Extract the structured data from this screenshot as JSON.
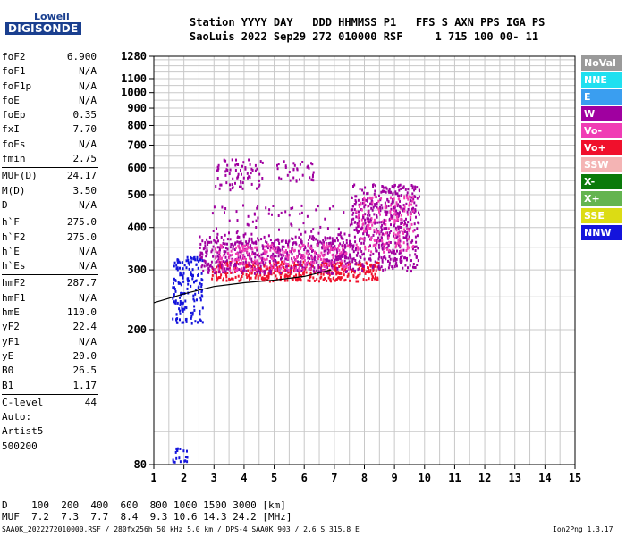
{
  "logo": {
    "line1": "Lowell",
    "line2": "DIGISONDE"
  },
  "header": {
    "line1": "Station YYYY DAY   DDD HHMMSS P1   FFS S AXN PPS IGA PS",
    "line2": "SaoLuis 2022 Sep29 272 010000 RSF     1 715 100 00- 11"
  },
  "parameters": [
    {
      "group": [
        {
          "name": "foF2",
          "value": "6.900"
        },
        {
          "name": "foF1",
          "value": "N/A"
        },
        {
          "name": "foF1p",
          "value": "N/A"
        },
        {
          "name": "foE",
          "value": "N/A"
        },
        {
          "name": "foEp",
          "value": "0.35"
        },
        {
          "name": "fxI",
          "value": "7.70"
        },
        {
          "name": "foEs",
          "value": "N/A"
        },
        {
          "name": "fmin",
          "value": "2.75"
        }
      ]
    },
    {
      "group": [
        {
          "name": "MUF(D)",
          "value": "24.17"
        },
        {
          "name": "M(D)",
          "value": "3.50"
        },
        {
          "name": "D",
          "value": "N/A"
        }
      ]
    },
    {
      "group": [
        {
          "name": "h`F",
          "value": "275.0"
        },
        {
          "name": "h`F2",
          "value": "275.0"
        },
        {
          "name": "h`E",
          "value": "N/A"
        },
        {
          "name": "h`Es",
          "value": "N/A"
        }
      ]
    },
    {
      "group": [
        {
          "name": "hmF2",
          "value": "287.7"
        },
        {
          "name": "hmF1",
          "value": "N/A"
        },
        {
          "name": "hmE",
          "value": "110.0"
        },
        {
          "name": "yF2",
          "value": "22.4"
        },
        {
          "name": "yF1",
          "value": "N/A"
        },
        {
          "name": "yE",
          "value": "20.0"
        },
        {
          "name": "B0",
          "value": "26.5"
        },
        {
          "name": "B1",
          "value": "1.17"
        }
      ]
    },
    {
      "group": [
        {
          "name": "C-level",
          "value": "44"
        }
      ]
    },
    {
      "group": [
        {
          "name": "Auto:",
          "value": ""
        },
        {
          "name": "Artist5",
          "value": ""
        },
        {
          "name": "500200",
          "value": ""
        }
      ]
    }
  ],
  "legend": [
    {
      "label": "NoVal",
      "color": "#9a9a9a"
    },
    {
      "label": "NNE",
      "color": "#1fe0f0"
    },
    {
      "label": "E",
      "color": "#3a9ef0"
    },
    {
      "label": "W",
      "color": "#a000a0"
    },
    {
      "label": "Vo-",
      "color": "#f03cb4"
    },
    {
      "label": "Vo+",
      "color": "#f0102c"
    },
    {
      "label": "SSW",
      "color": "#f4b4b4"
    },
    {
      "label": "X-",
      "color": "#0a7a0a"
    },
    {
      "label": "X+",
      "color": "#64b450"
    },
    {
      "label": "SSE",
      "color": "#dcdc14"
    },
    {
      "label": "NNW",
      "color": "#1414dc"
    }
  ],
  "footer": {
    "line1": "D    100  200  400  600  800 1000 1500 3000 [km]",
    "line2": "MUF  7.2  7.3  7.7  8.4  9.3 10.6 14.3 24.2 [MHz]",
    "line3": "SAA0K_2022272010000.RSF / 280fx256h 50 kHz 5.0 km / DPS-4 SAA0K 903 / 2.6 S 315.8 E",
    "line4": "Ion2Png 1.3.17"
  },
  "chart_data": {
    "type": "scatter",
    "title": "",
    "xlabel": "",
    "ylabel": "",
    "xlim": [
      1,
      15
    ],
    "ylim": [
      80,
      1280
    ],
    "x_ticks": [
      1,
      2,
      3,
      4,
      5,
      6,
      7,
      8,
      9,
      10,
      11,
      12,
      13,
      14,
      15
    ],
    "y_ticks": [
      80,
      200,
      300,
      400,
      500,
      600,
      700,
      800,
      900,
      1000,
      1100,
      1280
    ],
    "y_scale": "log",
    "grid": true,
    "echo_regions": [
      {
        "name": "",
        "color": "#f0102c",
        "freq": [
          2.9,
          8.5
        ],
        "height": [
          280,
          320
        ],
        "density": 0.9
      },
      {
        "name": "",
        "color": "#a000a0",
        "freq": [
          2.5,
          7.5
        ],
        "height": [
          295,
          380
        ],
        "density": 0.7
      },
      {
        "name": "",
        "color": "#f03cb4",
        "freq": [
          3.0,
          7.5
        ],
        "height": [
          300,
          360
        ],
        "density": 0.5
      },
      {
        "name": "",
        "color": "#a000a0",
        "freq": [
          7.5,
          9.8
        ],
        "height": [
          300,
          540
        ],
        "density": 0.55
      },
      {
        "name": "",
        "color": "#f03cb4",
        "freq": [
          7.7,
          9.6
        ],
        "height": [
          340,
          500
        ],
        "density": 0.4
      },
      {
        "name": "",
        "color": "#1414dc",
        "freq": [
          1.6,
          2.6
        ],
        "height": [
          210,
          330
        ],
        "density": 0.6
      },
      {
        "name": "",
        "color": "#a000a0",
        "freq": [
          3.0,
          4.6
        ],
        "height": [
          520,
          640
        ],
        "density": 0.35
      },
      {
        "name": "",
        "color": "#a000a0",
        "freq": [
          5.0,
          6.3
        ],
        "height": [
          550,
          640
        ],
        "density": 0.3
      },
      {
        "name": "",
        "color": "#a000a0",
        "freq": [
          2.9,
          9.5
        ],
        "height": [
          380,
          470
        ],
        "density": 0.12
      },
      {
        "name": "",
        "color": "#1414dc",
        "freq": [
          1.6,
          2.1
        ],
        "height": [
          82,
          90
        ],
        "density": 0.7
      }
    ],
    "profile_curve": {
      "color": "#000000",
      "points": [
        [
          1.0,
          240
        ],
        [
          2.0,
          255
        ],
        [
          3.0,
          268
        ],
        [
          4.0,
          275
        ],
        [
          5.0,
          280
        ],
        [
          6.0,
          287
        ],
        [
          6.9,
          300
        ]
      ]
    }
  }
}
